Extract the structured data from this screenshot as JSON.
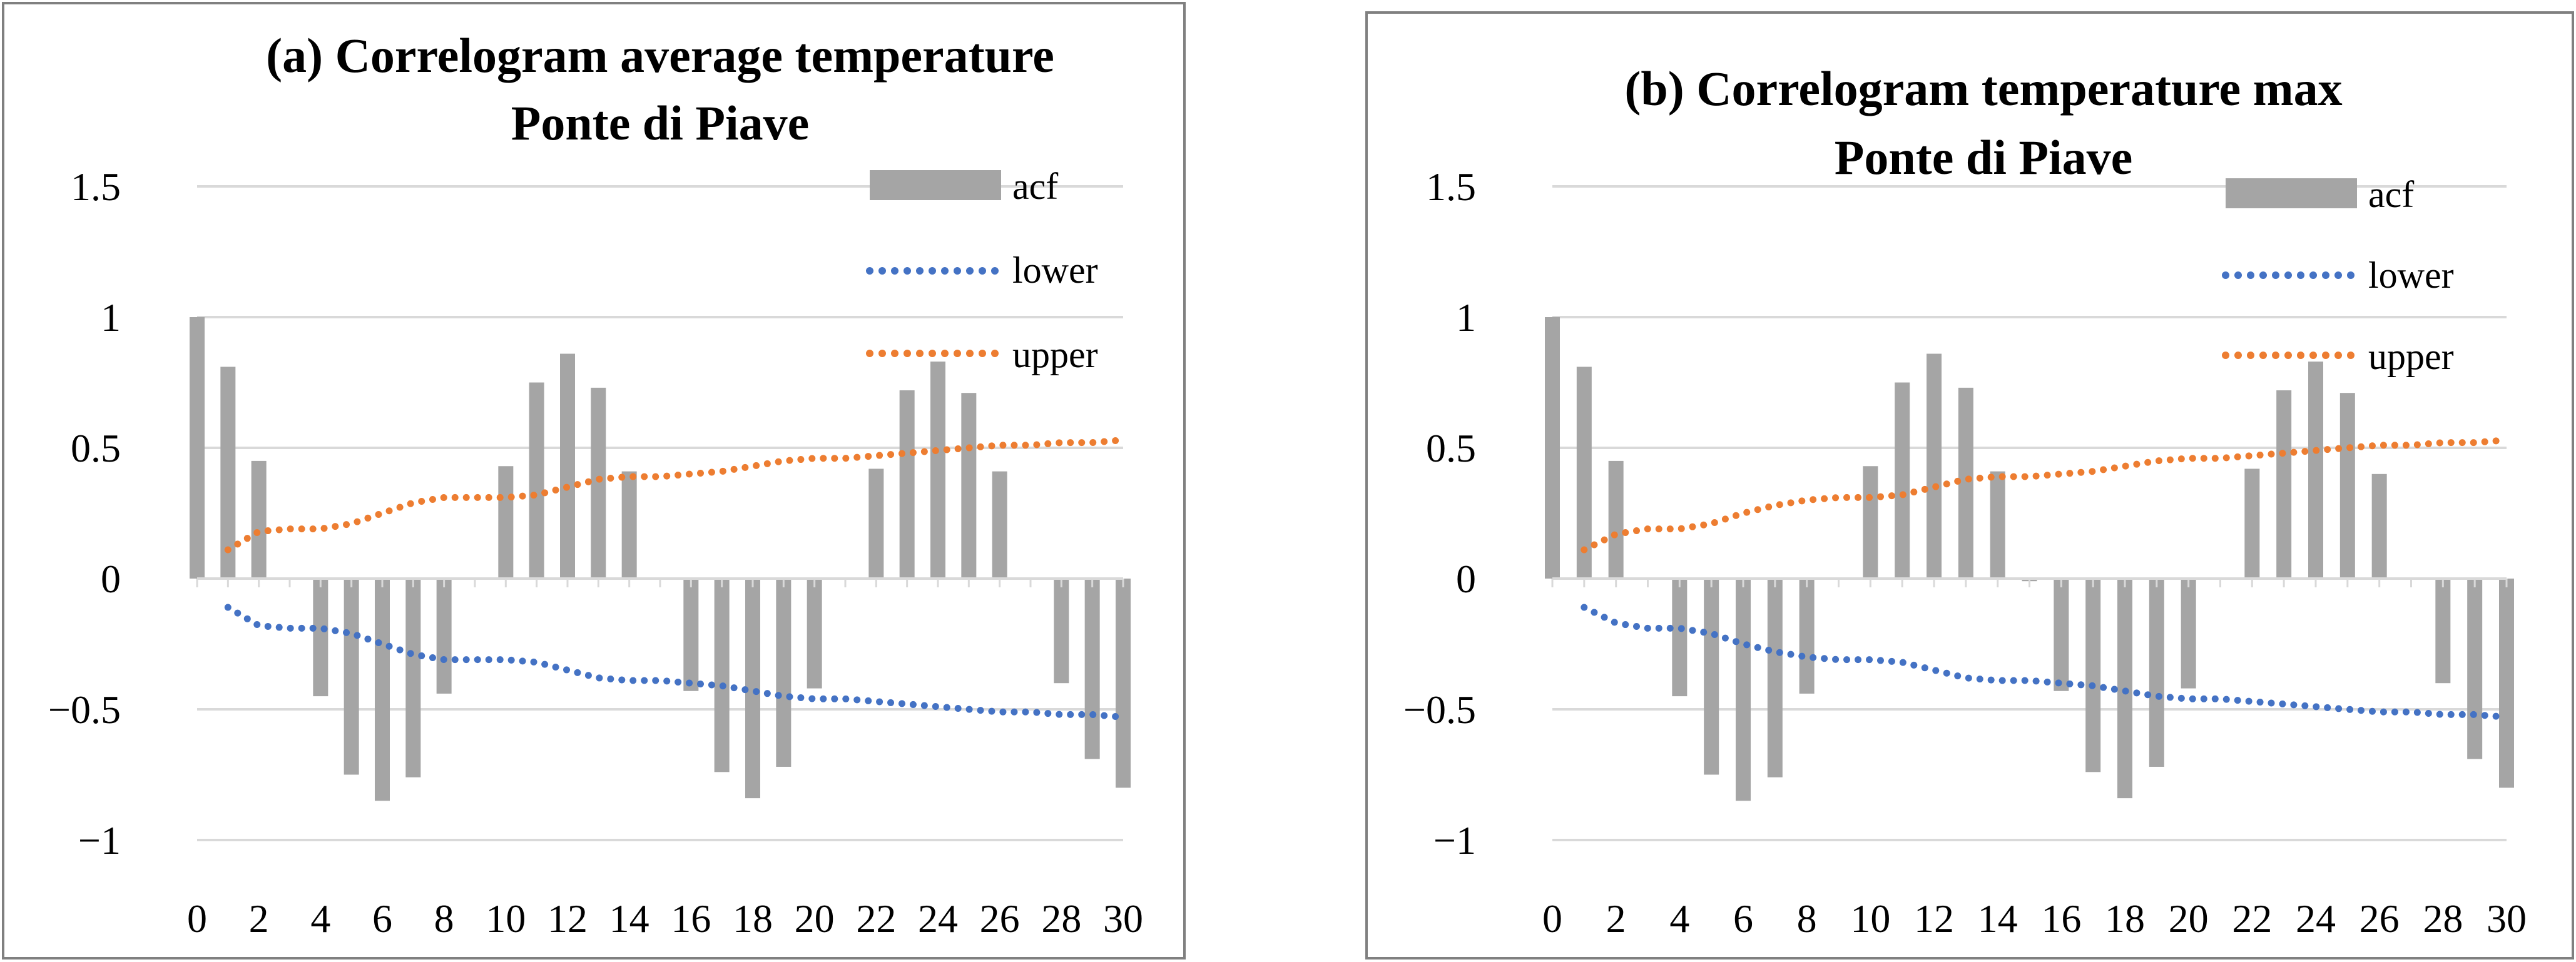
{
  "chart_data": [
    {
      "type": "bar",
      "title_lines": [
        "(a) Correlogram average temperature",
        "Ponte di Piave"
      ],
      "xlabel": "",
      "ylabel": "",
      "ylim": [
        -1,
        1.5
      ],
      "xlim": [
        0,
        30
      ],
      "y_ticks": [
        "1.5",
        "1",
        "0.5",
        "0",
        "−0.5",
        "−1"
      ],
      "x_ticks": [
        "0",
        "2",
        "4",
        "6",
        "8",
        "10",
        "12",
        "14",
        "16",
        "18",
        "20",
        "22",
        "24",
        "26",
        "28",
        "30"
      ],
      "grid": "horizontal",
      "legend_position": "top-right",
      "categories": [
        0,
        1,
        2,
        3,
        4,
        5,
        6,
        7,
        8,
        9,
        10,
        11,
        12,
        13,
        14,
        15,
        16,
        17,
        18,
        19,
        20,
        21,
        22,
        23,
        24,
        25,
        26,
        27,
        28,
        29,
        30
      ],
      "series": [
        {
          "name": "acf",
          "kind": "bar",
          "color": "#a5a5a5",
          "values": [
            1.0,
            0.81,
            0.45,
            0.0,
            -0.45,
            -0.75,
            -0.85,
            -0.76,
            -0.44,
            0.0,
            0.43,
            0.75,
            0.86,
            0.73,
            0.41,
            0.0,
            -0.43,
            -0.74,
            -0.84,
            -0.72,
            -0.42,
            0.0,
            0.42,
            0.72,
            0.83,
            0.71,
            0.41,
            0.0,
            -0.4,
            -0.69,
            -0.8
          ]
        },
        {
          "name": "lower",
          "kind": "dotted-line",
          "color": "#4472c4",
          "values": [
            null,
            -0.11,
            -0.18,
            -0.19,
            -0.19,
            -0.21,
            -0.25,
            -0.29,
            -0.31,
            -0.31,
            -0.31,
            -0.32,
            -0.35,
            -0.38,
            -0.39,
            -0.39,
            -0.4,
            -0.41,
            -0.43,
            -0.45,
            -0.46,
            -0.46,
            -0.47,
            -0.48,
            -0.49,
            -0.5,
            -0.51,
            -0.51,
            -0.52,
            -0.52,
            -0.53
          ]
        },
        {
          "name": "upper",
          "kind": "dotted-line",
          "color": "#ed7d31",
          "values": [
            null,
            0.11,
            0.18,
            0.19,
            0.19,
            0.21,
            0.25,
            0.29,
            0.31,
            0.31,
            0.31,
            0.32,
            0.35,
            0.38,
            0.39,
            0.39,
            0.4,
            0.41,
            0.43,
            0.45,
            0.46,
            0.46,
            0.47,
            0.48,
            0.49,
            0.5,
            0.51,
            0.51,
            0.52,
            0.52,
            0.53
          ]
        }
      ]
    },
    {
      "type": "bar",
      "title_lines": [
        "(b) Correlogram temperature max",
        "Ponte di Piave"
      ],
      "xlabel": "",
      "ylabel": "",
      "ylim": [
        -1,
        1.5
      ],
      "xlim": [
        0,
        30
      ],
      "y_ticks": [
        "1.5",
        "1",
        "0.5",
        "0",
        "−0.5",
        "−1"
      ],
      "x_ticks": [
        "0",
        "2",
        "4",
        "6",
        "8",
        "10",
        "12",
        "14",
        "16",
        "18",
        "20",
        "22",
        "24",
        "26",
        "28",
        "30"
      ],
      "grid": "horizontal",
      "legend_position": "top-right",
      "categories": [
        0,
        1,
        2,
        3,
        4,
        5,
        6,
        7,
        8,
        9,
        10,
        11,
        12,
        13,
        14,
        15,
        16,
        17,
        18,
        19,
        20,
        21,
        22,
        23,
        24,
        25,
        26,
        27,
        28,
        29,
        30
      ],
      "series": [
        {
          "name": "acf",
          "kind": "bar",
          "color": "#a5a5a5",
          "values": [
            1.0,
            0.81,
            0.45,
            0.0,
            -0.45,
            -0.75,
            -0.85,
            -0.76,
            -0.44,
            0.0,
            0.43,
            0.75,
            0.86,
            0.73,
            0.41,
            -0.01,
            -0.43,
            -0.74,
            -0.84,
            -0.72,
            -0.42,
            0.0,
            0.42,
            0.72,
            0.83,
            0.71,
            0.4,
            0.0,
            -0.4,
            -0.69,
            -0.8
          ]
        },
        {
          "name": "lower",
          "kind": "dotted-line",
          "color": "#4472c4",
          "values": [
            null,
            -0.11,
            -0.17,
            -0.19,
            -0.19,
            -0.21,
            -0.25,
            -0.28,
            -0.3,
            -0.31,
            -0.31,
            -0.32,
            -0.35,
            -0.38,
            -0.39,
            -0.39,
            -0.4,
            -0.41,
            -0.43,
            -0.45,
            -0.46,
            -0.46,
            -0.47,
            -0.48,
            -0.49,
            -0.5,
            -0.51,
            -0.51,
            -0.52,
            -0.52,
            -0.53
          ]
        },
        {
          "name": "upper",
          "kind": "dotted-line",
          "color": "#ed7d31",
          "values": [
            null,
            0.11,
            0.17,
            0.19,
            0.19,
            0.21,
            0.25,
            0.28,
            0.3,
            0.31,
            0.31,
            0.32,
            0.35,
            0.38,
            0.39,
            0.39,
            0.4,
            0.41,
            0.43,
            0.45,
            0.46,
            0.46,
            0.47,
            0.48,
            0.49,
            0.5,
            0.51,
            0.51,
            0.52,
            0.52,
            0.53
          ]
        }
      ]
    }
  ]
}
